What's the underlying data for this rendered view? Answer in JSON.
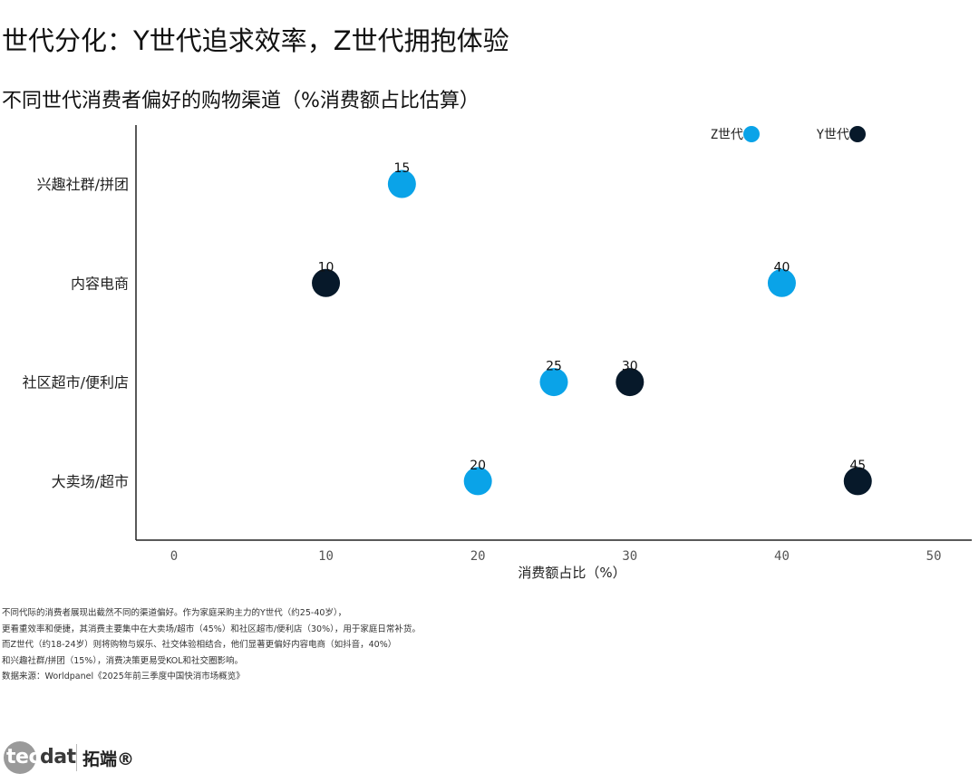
{
  "header": {
    "title": "世代分化：Y世代追求效率，Z世代拥抱体验",
    "subtitle": "不同世代消费者偏好的购物渠道（%消费额占比估算）"
  },
  "chart_data": {
    "type": "scatter",
    "xlabel": "消费额占比（%）",
    "ylabel": "",
    "xlim": [
      -2.5,
      52.5
    ],
    "x_ticks": [
      0,
      10,
      20,
      30,
      40,
      50
    ],
    "categories": [
      "兴趣社群/拼团",
      "内容电商",
      "社区超市/便利店",
      "大卖场/超市"
    ],
    "legend_position": "top-right",
    "grid": false,
    "series": [
      {
        "name": "Z世代",
        "color": "#0aa3e8",
        "points": [
          {
            "category": "兴趣社群/拼团",
            "value": 15
          },
          {
            "category": "内容电商",
            "value": 40
          },
          {
            "category": "社区超市/便利店",
            "value": 25
          },
          {
            "category": "大卖场/超市",
            "value": 20
          }
        ]
      },
      {
        "name": "Y世代",
        "color": "#07192a",
        "points": [
          {
            "category": "内容电商",
            "value": 10
          },
          {
            "category": "社区超市/便利店",
            "value": 30
          },
          {
            "category": "大卖场/超市",
            "value": 45
          }
        ]
      }
    ]
  },
  "notes": [
    "不同代际的消费者展现出截然不同的渠道偏好。作为家庭采购主力的Y世代（约25-40岁），",
    "更看重效率和便捷，其消费主要集中在大卖场/超市（45%）和社区超市/便利店（30%），用于家庭日常补货。",
    "而Z世代（约18-24岁）则将购物与娱乐、社交体验相结合，他们显著更偏好内容电商（如抖音，40%）",
    "和兴趣社群/拼团（15%），消费决策更易受KOL和社交圈影响。",
    "数据来源：Worldpanel《2025年前三季度中国快消市场概览》"
  ],
  "logo": {
    "mark_part1": "tec",
    "mark_part2": "dat",
    "name_cn": "拓端®"
  }
}
